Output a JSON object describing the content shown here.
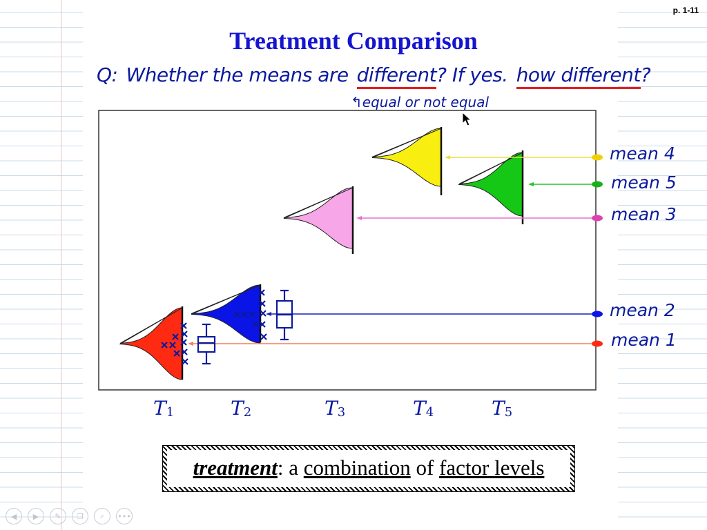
{
  "page": {
    "number": "p. 1-11"
  },
  "title": "Treatment Comparison",
  "question": {
    "q": "Q:",
    "pre": "Whether the means are",
    "word1": "different",
    "mid": "? If yes.",
    "word2": "how different",
    "end": "?"
  },
  "annotation": "equal or not equal",
  "mean_labels": [
    "mean 4",
    "mean 5",
    "mean 3",
    "mean 2",
    "mean 1"
  ],
  "treatments": [
    {
      "base": "T",
      "sub": "1"
    },
    {
      "base": "T",
      "sub": "2"
    },
    {
      "base": "T",
      "sub": "3"
    },
    {
      "base": "T",
      "sub": "4"
    },
    {
      "base": "T",
      "sub": "5"
    }
  ],
  "definition": {
    "term": "treatment",
    "colon": ": a",
    "w1": "combination",
    "of": "of",
    "w2": "factor levels"
  },
  "colors": {
    "title": "#1515d0",
    "handwriting": "#0b1a9e",
    "underline": "#e02020",
    "t1": "#ff2a12",
    "t2": "#0a14e6",
    "t3": "#f7a6e8",
    "t4": "#f8ef10",
    "t5": "#16c816"
  },
  "toolbar": [
    "prev-icon",
    "next-icon",
    "pen-icon",
    "pages-icon",
    "zoom-icon",
    "more-icon"
  ]
}
